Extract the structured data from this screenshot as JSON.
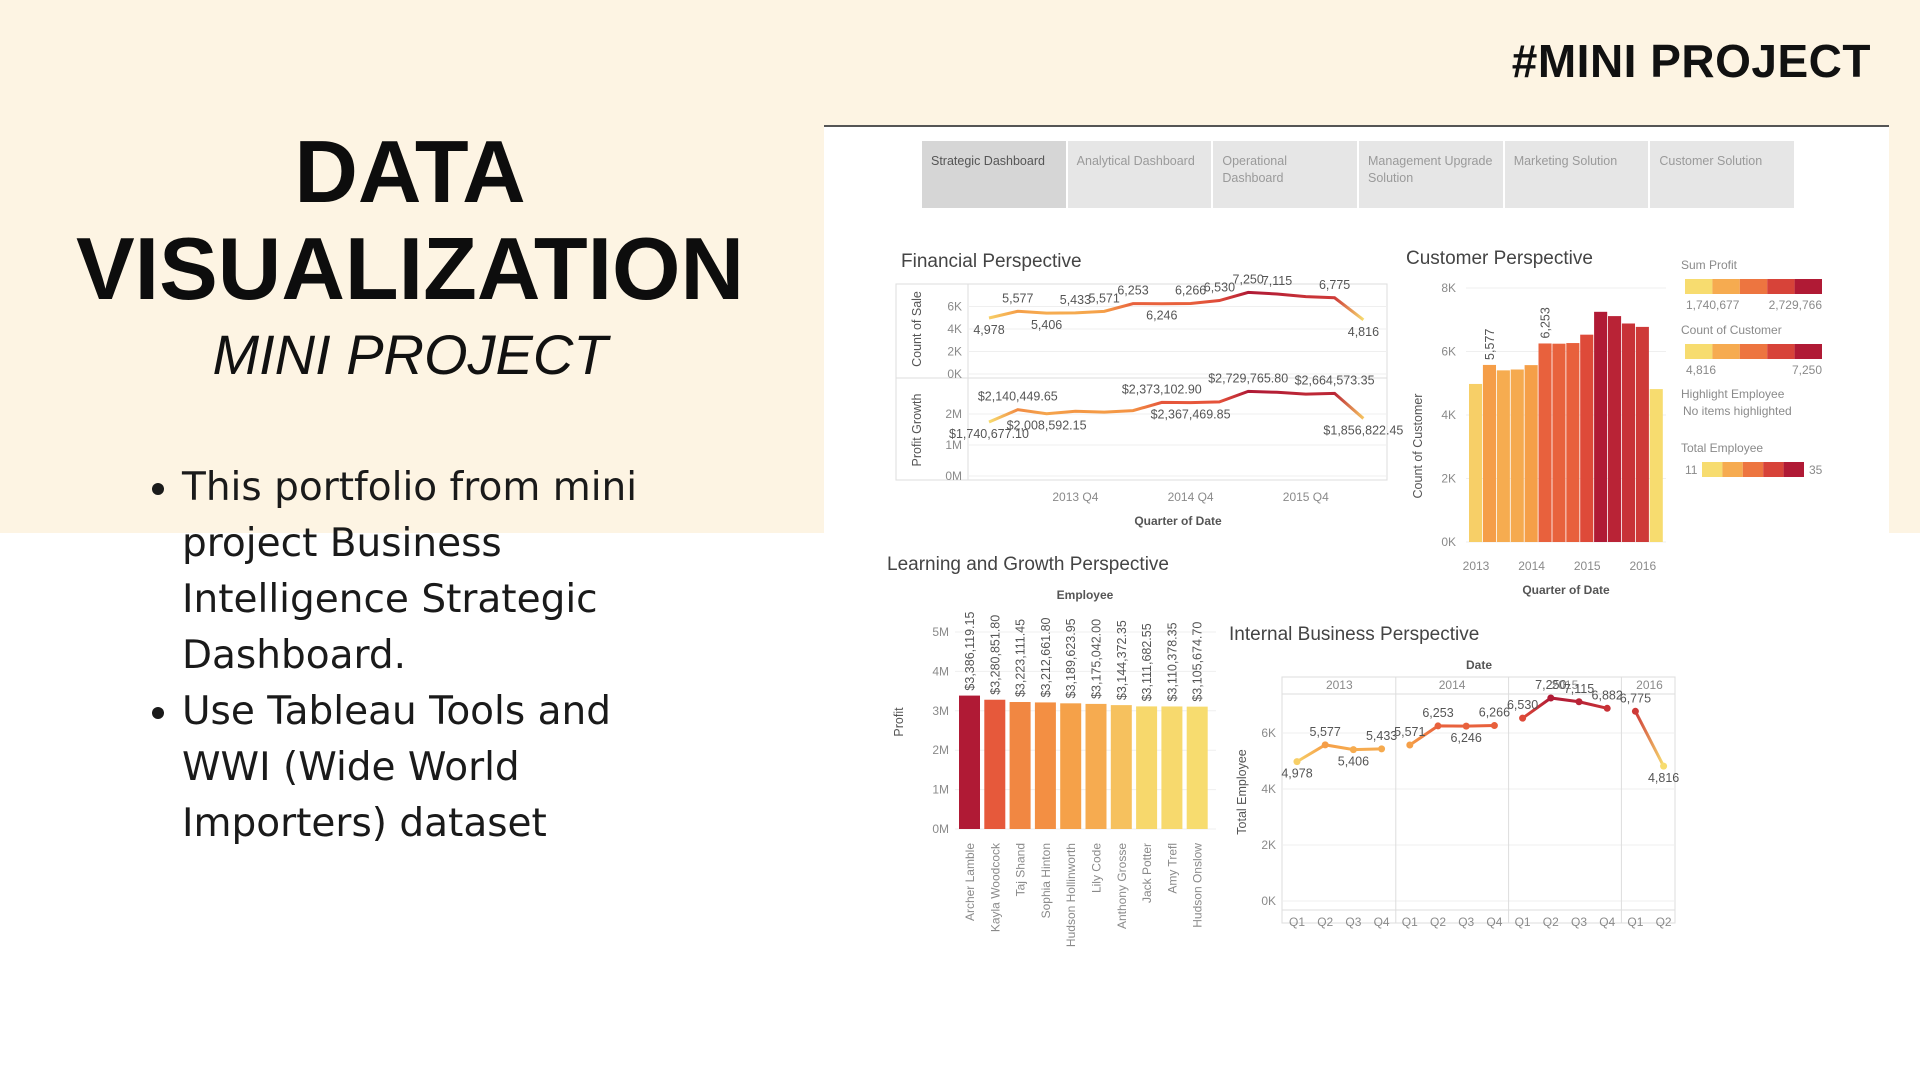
{
  "tag": "#MINI PROJECT",
  "title": {
    "lines": [
      "DATA",
      "VISUALIZATION"
    ],
    "subtitle": "MINI PROJECT"
  },
  "bullets": [
    "This portfolio from mini project Business Intelligence Strategic Dashboard.",
    "Use Tableau Tools and WWI (Wide World Importers) dataset"
  ],
  "dashboard": {
    "tabs": [
      "Strategic Dashboard",
      "Analytical Dashboard",
      "Operational Dashboard",
      "Management Upgrade Solution",
      "Marketing Solution",
      "Customer Solution"
    ],
    "color_scale": [
      "#f7dc6f",
      "#f59a45",
      "#e4503a",
      "#b01a35"
    ]
  },
  "chart_data": [
    {
      "type": "line",
      "title": "Financial Perspective",
      "x_title": "Quarter of Date",
      "categories": [
        null,
        null,
        null,
        "2013 Q4",
        null,
        null,
        null,
        "2014 Q4",
        null,
        null,
        null,
        "2015 Q4",
        null,
        null
      ],
      "series": [
        {
          "name": "Count of Sale",
          "axis": "y",
          "values": [
            4978,
            5577,
            5406,
            5433,
            5571,
            6253,
            6246,
            6266,
            6530,
            7250,
            7115,
            6882,
            6775,
            4816
          ],
          "value_labels": [
            "4,978",
            "5,577",
            "5,406",
            "5,433",
            "5,571",
            "6,253",
            "6,246",
            "6,266",
            "6,530",
            "7,250",
            "7,115",
            null,
            "6,775",
            "4,816"
          ]
        },
        {
          "name": "Profit Growth",
          "axis": "y2",
          "values": [
            1740677.1,
            2140449.65,
            2008592.15,
            2090000,
            2060000,
            2110000,
            2373102.9,
            2367469.85,
            2390000,
            2729765.8,
            2700000,
            2640000,
            2664573.35,
            1856822.45
          ],
          "value_labels": [
            "$1,740,677.10",
            "$2,140,449.65",
            "$2,008,592.15",
            null,
            null,
            null,
            "$2,373,102.90",
            "$2,367,469.85",
            null,
            "$2,729,765.80",
            null,
            null,
            "$2,664,573.35",
            "$1,856,822.45"
          ]
        }
      ],
      "ylim": [
        0,
        8000
      ],
      "yticks": [
        {
          "value": 0,
          "label": "0K"
        },
        {
          "value": 2000,
          "label": "2K"
        },
        {
          "value": 4000,
          "label": "4K"
        },
        {
          "value": 6000,
          "label": "6K"
        }
      ],
      "y2lim": [
        0,
        3000000
      ],
      "y2ticks": [
        {
          "value": 0,
          "label": "0M"
        },
        {
          "value": 1000000,
          "label": "1M"
        },
        {
          "value": 2000000,
          "label": "2M"
        }
      ]
    },
    {
      "type": "bar",
      "title": "Customer Perspective",
      "x_title": "Quarter of Date",
      "y_title": "Count of Customer",
      "categories": [
        "2013",
        null,
        null,
        null,
        "2014",
        null,
        null,
        null,
        "2015",
        null,
        null,
        null,
        "2016",
        null
      ],
      "values": [
        4978,
        5577,
        5406,
        5433,
        5571,
        6253,
        6246,
        6266,
        6530,
        7250,
        7115,
        6882,
        6775,
        4816
      ],
      "value_labels": [
        null,
        "5,577",
        null,
        null,
        null,
        "6,253",
        null,
        null,
        null,
        null,
        null,
        null,
        null,
        null
      ],
      "ylim": [
        0,
        8000
      ],
      "yticks": [
        {
          "value": 0,
          "label": "0K"
        },
        {
          "value": 2000,
          "label": "2K"
        },
        {
          "value": 4000,
          "label": "4K"
        },
        {
          "value": 6000,
          "label": "6K"
        },
        {
          "value": 8000,
          "label": "8K"
        }
      ],
      "legend": [
        {
          "title": "Sum Profit",
          "min": "1,740,677",
          "max": "2,729,766"
        },
        {
          "title": "Count of Customer",
          "min": "4,816",
          "max": "7,250"
        },
        {
          "title": "Highlight Employee",
          "note": "No items highlighted"
        },
        {
          "title": "Total Employee",
          "min": 11,
          "max": 35
        }
      ]
    },
    {
      "type": "bar",
      "title": "Learning and Growth Perspective",
      "x_title": "Employee",
      "y_title": "Profit",
      "categories": [
        "Archer Lamble",
        "Kayla Woodcock",
        "Taj Shand",
        "Sophia Hinton",
        "Hudson Hollinworth",
        "Lily Code",
        "Anthony Grosse",
        "Jack Potter",
        "Amy Trefl",
        "Hudson Onslow"
      ],
      "values": [
        3386119.15,
        3280851.8,
        3223111.45,
        3212661.8,
        3189623.95,
        3175042.0,
        3144372.35,
        3111682.55,
        3110378.35,
        3105674.7
      ],
      "value_labels": [
        "$3,386,119.15",
        "$3,280,851.80",
        "$3,223,111.45",
        "$3,212,661.80",
        "$3,189,623.95",
        "$3,175,042.00",
        "$3,144,372.35",
        "$3,111,682.55",
        "$3,110,378.35",
        "$3,105,674.70"
      ],
      "ylim": [
        0,
        5000000
      ],
      "yticks": [
        {
          "value": 0,
          "label": "0M"
        },
        {
          "value": 1000000,
          "label": "1M"
        },
        {
          "value": 2000000,
          "label": "2M"
        },
        {
          "value": 3000000,
          "label": "3M"
        },
        {
          "value": 4000000,
          "label": "4M"
        },
        {
          "value": 5000000,
          "label": "5M"
        }
      ]
    },
    {
      "type": "line",
      "title": "Internal Business Perspective",
      "x_title": "Date",
      "y_title": "Total Employee",
      "x_groups": [
        "2013",
        "2014",
        "2015",
        "2016"
      ],
      "categories": [
        "Q1",
        "Q2",
        "Q3",
        "Q4",
        "Q1",
        "Q2",
        "Q3",
        "Q4",
        "Q1",
        "Q2",
        "Q3",
        "Q4",
        "Q1",
        "Q2"
      ],
      "values": [
        4978,
        5577,
        5406,
        5433,
        5571,
        6253,
        6246,
        6266,
        6530,
        7250,
        7115,
        6882,
        6775,
        4816
      ],
      "value_labels": [
        "4,978",
        "5,577",
        "5,406",
        "5,433",
        "5,571",
        "6,253",
        "6,246",
        "6,266",
        "6,530",
        "7,250",
        "7,115",
        "6,882",
        "6,775",
        "4,816"
      ],
      "ylim": [
        0,
        7500
      ],
      "yticks": [
        {
          "value": 0,
          "label": "0K"
        },
        {
          "value": 2000,
          "label": "2K"
        },
        {
          "value": 4000,
          "label": "4K"
        },
        {
          "value": 6000,
          "label": "6K"
        }
      ]
    }
  ]
}
